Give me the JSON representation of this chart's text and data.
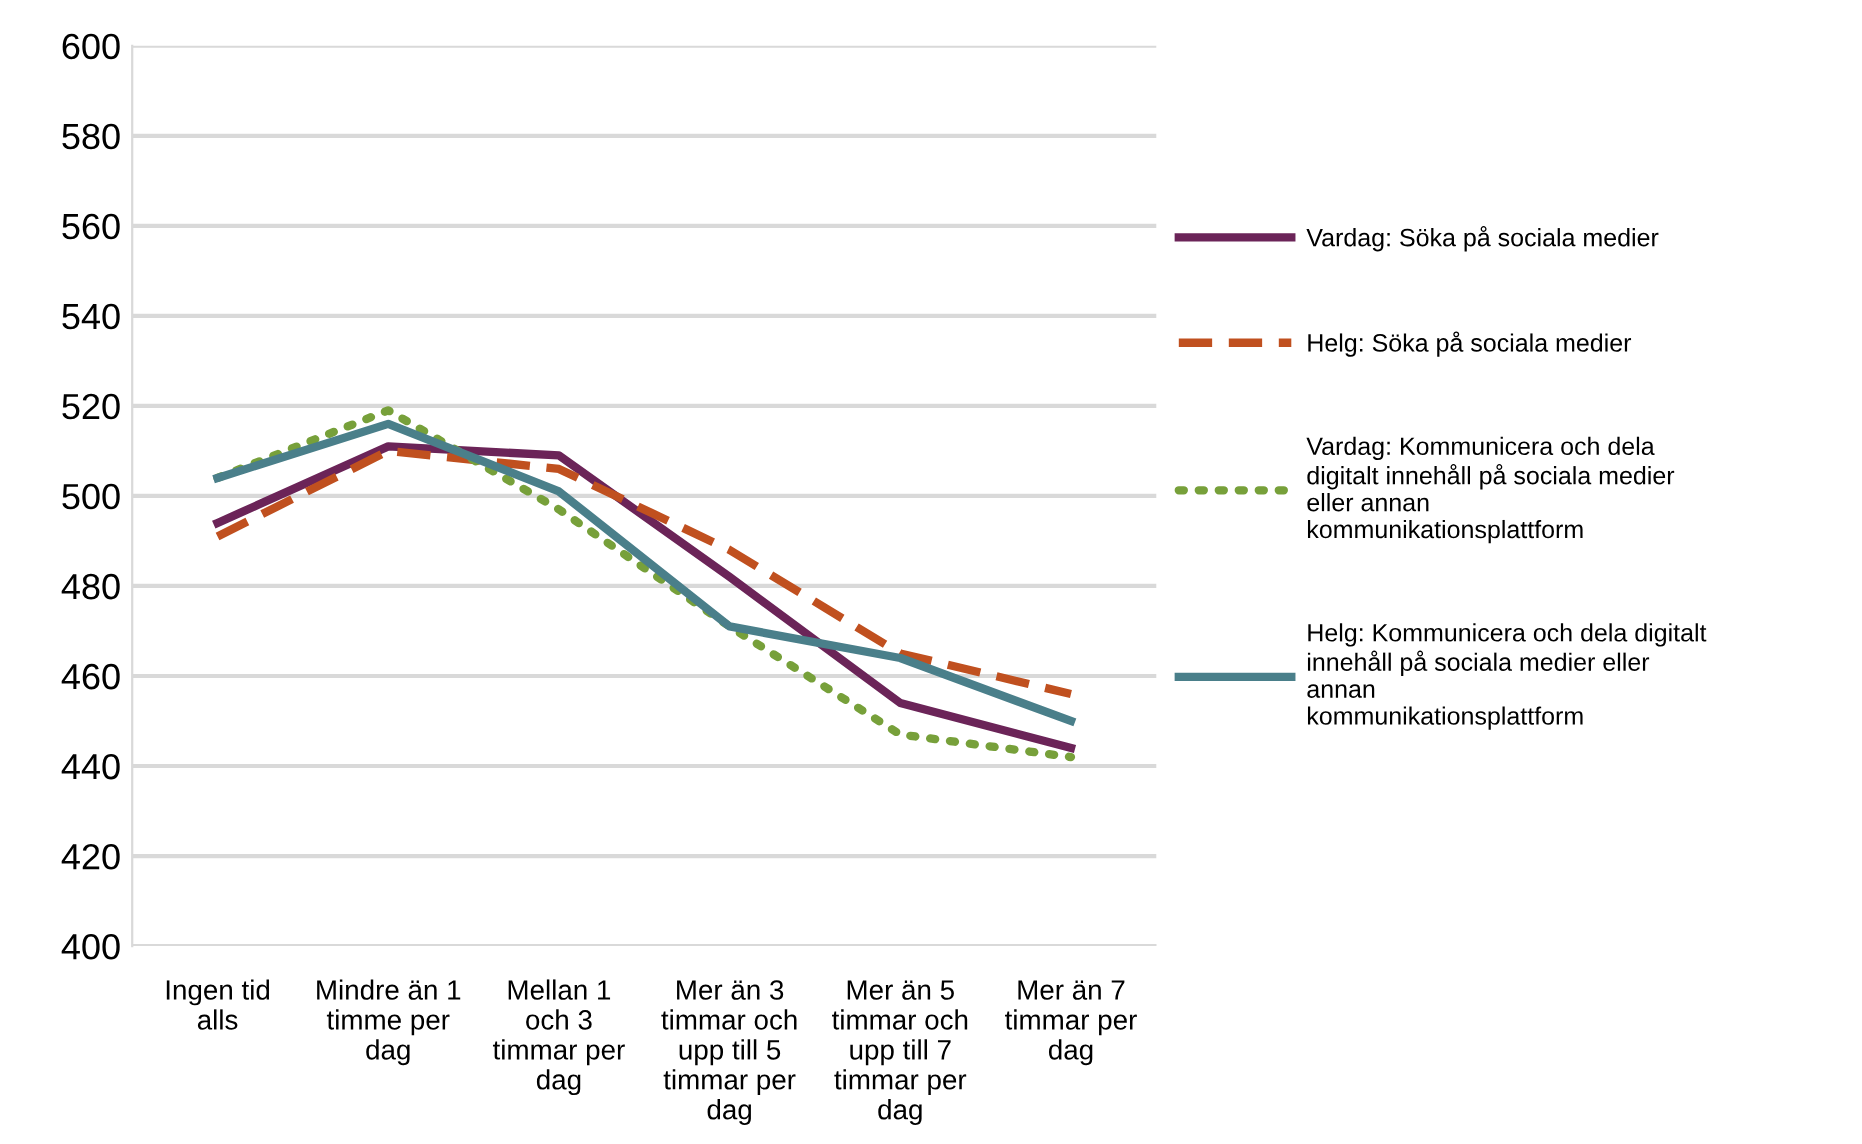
{
  "chart_data": {
    "type": "line",
    "categories": [
      "Ingen tid\nalls",
      "Mindre än 1\ntimme per\ndag",
      "Mellan 1\noch 3\ntimmar per\ndag",
      "Mer än 3\ntimmar och\nupp till 5\ntimmar per\ndag",
      "Mer än 5\ntimmar och\nupp till 7\ntimmar per\ndag",
      "Mer än 7\ntimmar per\ndag"
    ],
    "series": [
      {
        "name": "Vardag: Söka på sociala medier",
        "color": "#6b2458",
        "line_style": "solid",
        "values": [
          494,
          511,
          509,
          482,
          454,
          444
        ]
      },
      {
        "name": "Helg: Söka på sociala medier",
        "color": "#c0501f",
        "line_style": "dashed",
        "values": [
          491,
          510,
          506,
          488,
          465,
          456
        ]
      },
      {
        "name": "Vardag: Kommunicera och dela\ndigitalt innehåll på sociala medier\neller annan\nkommunikationsplattform",
        "color": "#77a03a",
        "line_style": "dotted",
        "values": [
          504,
          519,
          497,
          471,
          447,
          442
        ]
      },
      {
        "name": "Helg: Kommunicera och dela digitalt\ninnehåll på sociala medier eller\nannan\nkommunikationsplattform",
        "color": "#4a7f8a",
        "line_style": "solid",
        "values": [
          504,
          516,
          501,
          471,
          464,
          450
        ]
      }
    ],
    "ylim": [
      400,
      600
    ],
    "yticks": [
      400,
      420,
      440,
      460,
      480,
      500,
      520,
      540,
      560,
      580,
      600
    ],
    "grid": "y",
    "legend": "right",
    "marker": "none"
  }
}
